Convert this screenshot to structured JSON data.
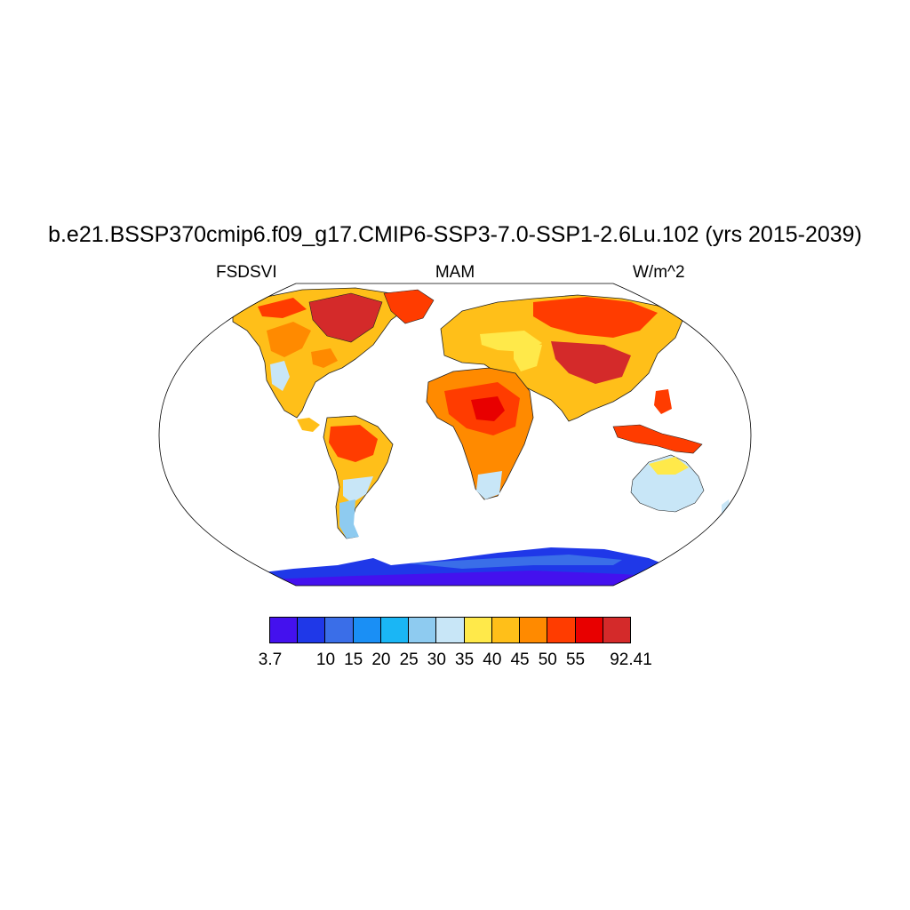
{
  "figure": {
    "title": "b.e21.BSSP370cmip6.f09_g17.CMIP6-SSP3-7.0-SSP1-2.6Lu.102 (yrs 2015-2039)",
    "left_label": "FSDSVI",
    "center_label": "MAM",
    "right_label": "W/m^2"
  },
  "colorbar": {
    "colors": [
      "#4411ee",
      "#1f38e8",
      "#3a6ee8",
      "#1a8ff5",
      "#1ab6f5",
      "#8ecbf0",
      "#c8e6f7",
      "#ffe94a",
      "#ffbf19",
      "#ff8a00",
      "#ff3c00",
      "#e80000",
      "#d42a2a"
    ],
    "labels": [
      {
        "text": "3.7",
        "boundary": 0
      },
      {
        "text": "10",
        "boundary": 2
      },
      {
        "text": "15",
        "boundary": 3
      },
      {
        "text": "20",
        "boundary": 4
      },
      {
        "text": "25",
        "boundary": 5
      },
      {
        "text": "30",
        "boundary": 6
      },
      {
        "text": "35",
        "boundary": 7
      },
      {
        "text": "40",
        "boundary": 8
      },
      {
        "text": "45",
        "boundary": 9
      },
      {
        "text": "50",
        "boundary": 10
      },
      {
        "text": "55",
        "boundary": 11
      },
      {
        "text": "92.41",
        "boundary": 13
      }
    ]
  }
}
